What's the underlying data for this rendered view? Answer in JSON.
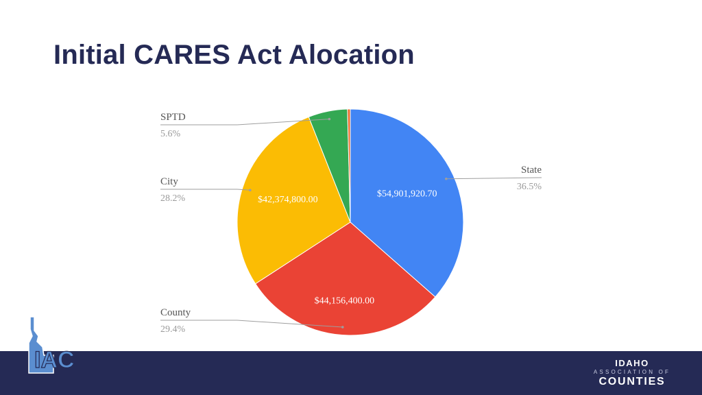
{
  "page": {
    "title": "Initial CARES Act Alocation"
  },
  "colors": {
    "accent": "#252a55",
    "state": "#4285f4",
    "county": "#ea4335",
    "city": "#fbbc04",
    "sptd": "#34a853",
    "other": "#ed6c2e"
  },
  "footer": {
    "brand_line1": "IDAHO",
    "brand_line2": "ASSOCIATION OF",
    "brand_line3": "COUNTIES",
    "logo_text": "IAC",
    "logo_icon": "idaho-state-outline-icon"
  },
  "chart_data": {
    "type": "pie",
    "title": "",
    "slices": [
      {
        "label": "State",
        "percent_label": "36.5%",
        "value": 54901920.7,
        "value_label": "$54,901,920.70",
        "color": "#4285f4"
      },
      {
        "label": "County",
        "percent_label": "29.4%",
        "value": 44156400.0,
        "value_label": "$44,156,400.00",
        "color": "#ea4335"
      },
      {
        "label": "City",
        "percent_label": "28.2%",
        "value": 42374800.0,
        "value_label": "$42,374,800.00",
        "color": "#fbbc04"
      },
      {
        "label": "SPTD",
        "percent_label": "5.6%",
        "value": 8423000,
        "value_label": "",
        "color": "#34a853"
      },
      {
        "label": "",
        "percent_label": "",
        "value": 600000,
        "value_label": "",
        "color": "#ed6c2e"
      }
    ]
  }
}
